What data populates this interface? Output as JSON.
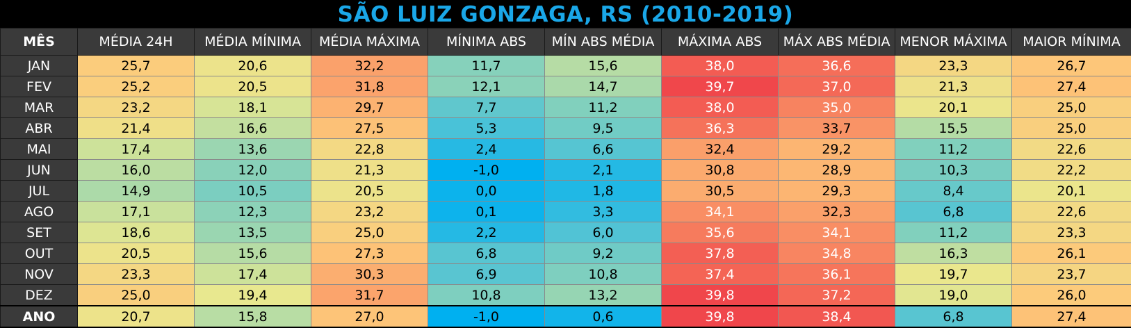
{
  "chart_data": {
    "type": "table",
    "title": "SÃO LUIZ GONZAGA, RS (2010-2019)",
    "columns": [
      "MÊS",
      "MÉDIA 24H",
      "MÉDIA MÍNIMA",
      "MÉDIA MÁXIMA",
      "MÍNIMA ABS",
      "MÍN ABS MÉDIA",
      "MÁXIMA ABS",
      "MÁX ABS MÉDIA",
      "MENOR MÁXIMA",
      "MAIOR MÍNIMA"
    ],
    "rows": [
      {
        "label": "JAN",
        "values": [
          "25,7",
          "20,6",
          "32,2",
          "11,7",
          "15,6",
          "38,0",
          "36,6",
          "23,3",
          "26,7"
        ]
      },
      {
        "label": "FEV",
        "values": [
          "25,2",
          "20,5",
          "31,8",
          "12,1",
          "14,7",
          "39,7",
          "37,0",
          "21,3",
          "27,4"
        ]
      },
      {
        "label": "MAR",
        "values": [
          "23,2",
          "18,1",
          "29,7",
          "7,7",
          "11,2",
          "38,0",
          "35,0",
          "20,1",
          "25,0"
        ]
      },
      {
        "label": "ABR",
        "values": [
          "21,4",
          "16,6",
          "27,5",
          "5,3",
          "9,5",
          "36,3",
          "33,7",
          "15,5",
          "25,0"
        ]
      },
      {
        "label": "MAI",
        "values": [
          "17,4",
          "13,6",
          "22,8",
          "2,4",
          "6,6",
          "32,4",
          "29,2",
          "11,2",
          "22,6"
        ]
      },
      {
        "label": "JUN",
        "values": [
          "16,0",
          "12,0",
          "21,3",
          "-1,0",
          "2,1",
          "30,8",
          "28,9",
          "10,3",
          "22,2"
        ]
      },
      {
        "label": "JUL",
        "values": [
          "14,9",
          "10,5",
          "20,5",
          "0,0",
          "1,8",
          "30,5",
          "29,3",
          "8,4",
          "20,1"
        ]
      },
      {
        "label": "AGO",
        "values": [
          "17,1",
          "12,3",
          "23,2",
          "0,1",
          "3,3",
          "34,1",
          "32,3",
          "6,8",
          "22,6"
        ]
      },
      {
        "label": "SET",
        "values": [
          "18,6",
          "13,5",
          "25,0",
          "2,2",
          "6,0",
          "35,6",
          "34,1",
          "11,2",
          "23,3"
        ]
      },
      {
        "label": "OUT",
        "values": [
          "20,5",
          "15,6",
          "27,3",
          "6,8",
          "9,2",
          "37,8",
          "34,8",
          "16,3",
          "26,1"
        ]
      },
      {
        "label": "NOV",
        "values": [
          "23,3",
          "17,4",
          "30,3",
          "6,9",
          "10,8",
          "37,4",
          "36,1",
          "19,7",
          "23,7"
        ]
      },
      {
        "label": "DEZ",
        "values": [
          "25,0",
          "19,4",
          "31,7",
          "10,8",
          "13,2",
          "39,8",
          "37,2",
          "19,0",
          "26,0"
        ]
      },
      {
        "label": "ANO",
        "values": [
          "20,7",
          "15,8",
          "27,0",
          "-1,0",
          "0,6",
          "39,8",
          "38,4",
          "6,8",
          "27,4"
        ]
      }
    ],
    "colors": {
      "title": "#1aa7e8",
      "header_bg": "#3a3a3a",
      "scale": [
        "#00b0f0",
        "#4fc3d6",
        "#8fd3b6",
        "#e9e88e",
        "#fdc97a",
        "#fa9a68",
        "#f0434a"
      ],
      "scale_min": -1,
      "scale_max": 40
    }
  }
}
